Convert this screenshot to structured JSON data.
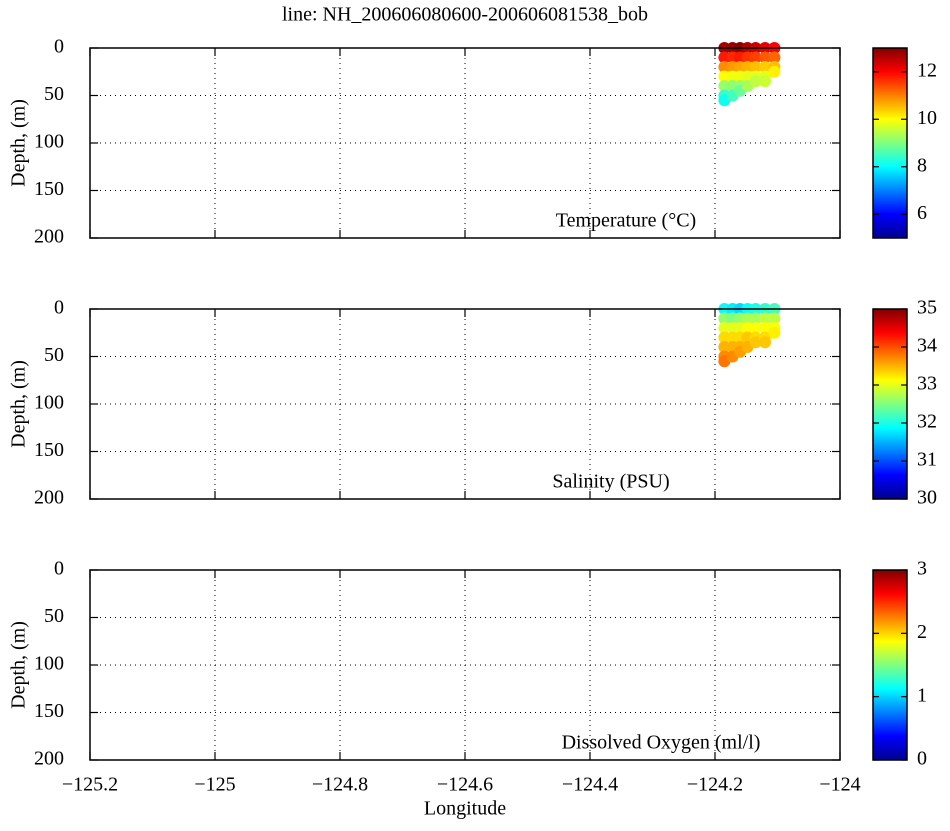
{
  "chart_data": [
    {
      "type": "scatter",
      "title": "line: NH_200606080600-200606081538_bob",
      "ylabel": "Depth, (m)",
      "annotation": "Temperature (°C)",
      "x": [
        -124.185,
        -124.185,
        -124.185,
        -124.185,
        -124.185,
        -124.185,
        -124.185,
        -124.172,
        -124.172,
        -124.172,
        -124.172,
        -124.172,
        -124.172,
        -124.16,
        -124.16,
        -124.16,
        -124.16,
        -124.16,
        -124.16,
        -124.148,
        -124.148,
        -124.148,
        -124.148,
        -124.148,
        -124.135,
        -124.135,
        -124.135,
        -124.135,
        -124.135,
        -124.12,
        -124.12,
        -124.12,
        -124.12,
        -124.12,
        -124.105,
        -124.105,
        -124.105,
        -124.105
      ],
      "y": [
        0,
        10,
        20,
        30,
        40,
        50,
        55,
        0,
        10,
        20,
        30,
        40,
        50,
        0,
        10,
        20,
        30,
        40,
        45,
        0,
        10,
        20,
        30,
        40,
        0,
        10,
        20,
        30,
        35,
        0,
        10,
        20,
        30,
        35,
        0,
        10,
        20,
        25
      ],
      "values": [
        12.7,
        11.8,
        10.9,
        10.0,
        9.2,
        8.4,
        8.1,
        12.8,
        11.7,
        10.8,
        9.9,
        9.1,
        8.5,
        12.9,
        11.8,
        10.7,
        9.9,
        9.2,
        8.8,
        12.6,
        11.6,
        10.6,
        9.8,
        9.3,
        12.4,
        11.5,
        10.5,
        9.8,
        9.5,
        12.2,
        11.3,
        10.4,
        9.8,
        9.6,
        12.0,
        11.2,
        10.5,
        10.1
      ],
      "xlim": [
        -125.2,
        -124
      ],
      "xticks": [
        -125.2,
        -125,
        -124.8,
        -124.6,
        -124.4,
        -124.2,
        -124
      ],
      "show_xtick_labels": false,
      "ylim": [
        200,
        0
      ],
      "yticks": [
        0,
        50,
        100,
        150,
        200
      ],
      "grid": true,
      "colorbar_lim": [
        5,
        13
      ],
      "colorbar_ticks": [
        6,
        8,
        10,
        12
      ],
      "colormap": "jet"
    },
    {
      "type": "scatter",
      "ylabel": "Depth, (m)",
      "annotation": "Salinity (PSU)",
      "x": [
        -124.185,
        -124.185,
        -124.185,
        -124.185,
        -124.185,
        -124.185,
        -124.185,
        -124.172,
        -124.172,
        -124.172,
        -124.172,
        -124.172,
        -124.172,
        -124.16,
        -124.16,
        -124.16,
        -124.16,
        -124.16,
        -124.16,
        -124.148,
        -124.148,
        -124.148,
        -124.148,
        -124.148,
        -124.135,
        -124.135,
        -124.135,
        -124.135,
        -124.135,
        -124.12,
        -124.12,
        -124.12,
        -124.12,
        -124.12,
        -124.105,
        -124.105,
        -124.105,
        -124.105
      ],
      "y": [
        0,
        10,
        20,
        30,
        40,
        50,
        55,
        0,
        10,
        20,
        30,
        40,
        50,
        0,
        10,
        20,
        30,
        40,
        45,
        0,
        10,
        20,
        30,
        40,
        0,
        10,
        20,
        30,
        35,
        0,
        10,
        20,
        30,
        35,
        0,
        10,
        20,
        25
      ],
      "values": [
        31.9,
        32.6,
        33.0,
        33.3,
        33.5,
        33.7,
        33.8,
        31.8,
        32.5,
        33.0,
        33.3,
        33.5,
        33.7,
        31.7,
        32.6,
        33.0,
        33.3,
        33.5,
        33.6,
        31.9,
        32.7,
        33.1,
        33.4,
        33.5,
        32.0,
        32.7,
        33.1,
        33.3,
        33.4,
        32.1,
        32.8,
        33.1,
        33.3,
        33.4,
        32.2,
        32.8,
        33.1,
        33.2
      ],
      "xlim": [
        -125.2,
        -124
      ],
      "xticks": [
        -125.2,
        -125,
        -124.8,
        -124.6,
        -124.4,
        -124.2,
        -124
      ],
      "show_xtick_labels": false,
      "ylim": [
        200,
        0
      ],
      "yticks": [
        0,
        50,
        100,
        150,
        200
      ],
      "grid": true,
      "colorbar_lim": [
        30,
        35
      ],
      "colorbar_ticks": [
        30,
        31,
        32,
        33,
        34,
        35
      ],
      "colormap": "jet"
    },
    {
      "type": "scatter",
      "ylabel": "Depth, (m)",
      "xlabel": "Longitude",
      "annotation": "Dissolved Oxygen (ml/l)",
      "x": [],
      "y": [],
      "values": [],
      "xlim": [
        -125.2,
        -124
      ],
      "xticks": [
        {
          "value": -125.2,
          "label": "−125.2"
        },
        {
          "value": -125,
          "label": "−125"
        },
        {
          "value": -124.8,
          "label": "−124.8"
        },
        {
          "value": -124.6,
          "label": "−124.6"
        },
        {
          "value": -124.4,
          "label": "−124.4"
        },
        {
          "value": -124.2,
          "label": "−124.2"
        },
        {
          "value": -124,
          "label": "−124"
        }
      ],
      "show_xtick_labels": true,
      "ylim": [
        200,
        0
      ],
      "yticks": [
        0,
        50,
        100,
        150,
        200
      ],
      "grid": true,
      "colorbar_lim": [
        0,
        3
      ],
      "colorbar_ticks": [
        0,
        1,
        2,
        3
      ],
      "colormap": "jet"
    }
  ]
}
